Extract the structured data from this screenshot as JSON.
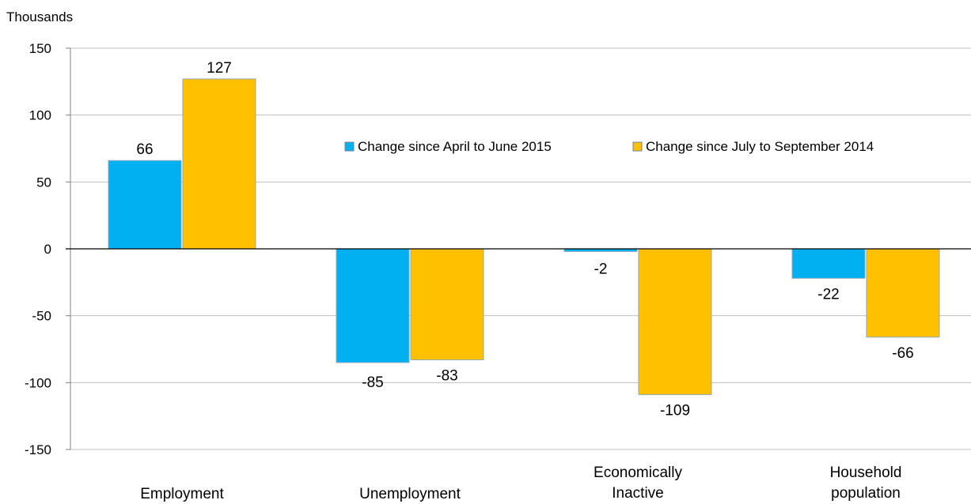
{
  "chart_data": {
    "type": "bar",
    "title": "",
    "ylabel": "Thousands",
    "xlabel": "",
    "ylim": [
      -150,
      150
    ],
    "yticks": [
      150,
      100,
      50,
      0,
      -50,
      -100,
      -150
    ],
    "grid": true,
    "legend_position": "top-right",
    "categories": [
      [
        "Employment"
      ],
      [
        "Unemployment"
      ],
      [
        "Economically",
        "Inactive"
      ],
      [
        "Household",
        "population"
      ]
    ],
    "series": [
      {
        "name": "Change since April to June 2015",
        "color": "#00B0F0",
        "values": [
          66,
          -85,
          -2,
          -22
        ],
        "labels": [
          "66",
          "-85",
          "-2",
          "-22"
        ]
      },
      {
        "name": "Change since July to September 2014",
        "color": "#FFC000",
        "values": [
          127,
          -83,
          -109,
          -66
        ],
        "labels": [
          "127",
          "-83",
          "-109",
          "-66"
        ]
      }
    ]
  }
}
